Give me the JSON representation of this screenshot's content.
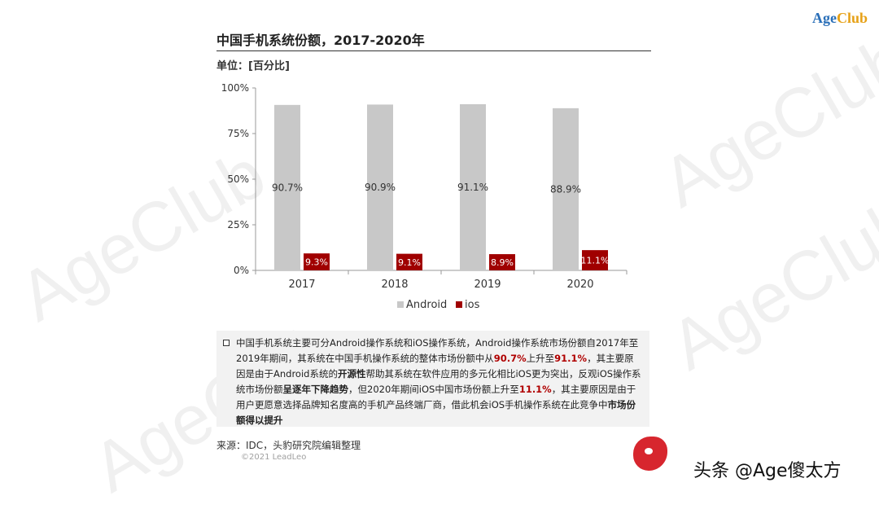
{
  "brand": {
    "part1": "Age",
    "part2": "Club"
  },
  "watermark": "AgeClub",
  "title": "中国手机系统份额，2017-2020年",
  "unit": "单位：[百分比]",
  "chart_data": {
    "type": "bar",
    "categories": [
      "2017",
      "2018",
      "2019",
      "2020"
    ],
    "series": [
      {
        "name": "Android",
        "values": [
          90.7,
          90.9,
          91.1,
          88.9
        ],
        "labels": [
          "90.7%",
          "90.9%",
          "91.1%",
          "88.9%"
        ],
        "color": "#c8c8c8"
      },
      {
        "name": "ios",
        "values": [
          9.3,
          9.1,
          8.9,
          11.1
        ],
        "labels": [
          "9.3%",
          "9.1%",
          "8.9%",
          "11.1%"
        ],
        "color": "#a00000"
      }
    ],
    "yticks": [
      "0%",
      "25%",
      "50%",
      "75%",
      "100%"
    ],
    "ylim": [
      0,
      100
    ],
    "legend_position": "bottom"
  },
  "note": {
    "t1": "中国手机系统主要可分Android操作系统和iOS操作系统，Android操作系统市场份额自2017年至2019年期间，其系统在中国手机操作系统的整体市场份额中从",
    "r1": "90.7%",
    "t2": "上升至",
    "r2": "91.1%",
    "t3": "，其主要原因是由于Android系统的",
    "b1": "开源性",
    "t4": "帮助其系统在软件应用的多元化相比iOS更为突出，反观iOS操作系统市场份额",
    "b2": "呈逐年下降趋势",
    "t5": "，但2020年期间iOS中国市场份额上升至",
    "r3": "11.1%",
    "t6": "，其主要原因是由于用户更愿意选择品牌知名度高的手机产品终端厂商，借此机会iOS手机操作系统在此竞争中",
    "b3": "市场份额得以提升"
  },
  "source": "来源：IDC，头豹研究院编辑整理",
  "copyright": "©2021 LeadLeo",
  "footer_handle": "头条 @Age傻太方",
  "colors": {
    "android": "#c8c8c8",
    "ios": "#a00000",
    "highlight": "#b00000"
  }
}
